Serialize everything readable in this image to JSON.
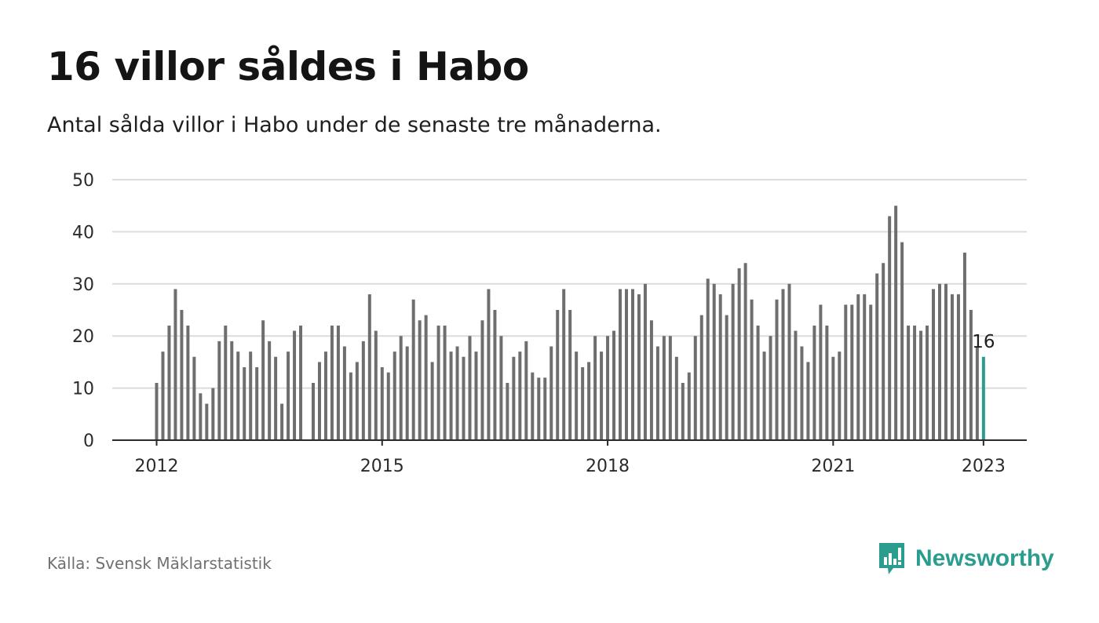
{
  "header": {
    "title": "16 villor såldes i Habo",
    "subtitle": "Antal sålda villor i Habo under de senaste tre månaderna."
  },
  "footer": {
    "source": "Källa: Svensk Mäklarstatistik",
    "brand": "Newsworthy"
  },
  "colors": {
    "bar": "#6e6e6e",
    "highlight": "#2a9d8f",
    "grid": "#dcdcdc",
    "axis": "#2b2b2b",
    "brand": "#2a9d8f"
  },
  "chart_data": {
    "type": "bar",
    "title": "16 villor såldes i Habo",
    "subtitle": "Antal sålda villor i Habo under de senaste tre månaderna.",
    "xlabel": "",
    "ylabel": "",
    "ylim": [
      0,
      50
    ],
    "yticks": [
      0,
      10,
      20,
      30,
      40,
      50
    ],
    "grid": true,
    "xticks": [
      {
        "label": "2012",
        "index": 0
      },
      {
        "label": "2015",
        "index": 36
      },
      {
        "label": "2018",
        "index": 72
      },
      {
        "label": "2021",
        "index": 108
      },
      {
        "label": "2023",
        "index": 132
      }
    ],
    "highlight_index": 132,
    "highlight_label": "16",
    "categories": [
      "2012-01",
      "2012-02",
      "2012-03",
      "2012-04",
      "2012-05",
      "2012-06",
      "2012-07",
      "2012-08",
      "2012-09",
      "2012-10",
      "2012-11",
      "2012-12",
      "2013-01",
      "2013-02",
      "2013-03",
      "2013-04",
      "2013-05",
      "2013-06",
      "2013-07",
      "2013-08",
      "2013-09",
      "2013-10",
      "2013-11",
      "2013-12",
      "2014-01",
      "2014-02",
      "2014-03",
      "2014-04",
      "2014-05",
      "2014-06",
      "2014-07",
      "2014-08",
      "2014-09",
      "2014-10",
      "2014-11",
      "2014-12",
      "2015-01",
      "2015-02",
      "2015-03",
      "2015-04",
      "2015-05",
      "2015-06",
      "2015-07",
      "2015-08",
      "2015-09",
      "2015-10",
      "2015-11",
      "2015-12",
      "2016-01",
      "2016-02",
      "2016-03",
      "2016-04",
      "2016-05",
      "2016-06",
      "2016-07",
      "2016-08",
      "2016-09",
      "2016-10",
      "2016-11",
      "2016-12",
      "2017-01",
      "2017-02",
      "2017-03",
      "2017-04",
      "2017-05",
      "2017-06",
      "2017-07",
      "2017-08",
      "2017-09",
      "2017-10",
      "2017-11",
      "2017-12",
      "2018-01",
      "2018-02",
      "2018-03",
      "2018-04",
      "2018-05",
      "2018-06",
      "2018-07",
      "2018-08",
      "2018-09",
      "2018-10",
      "2018-11",
      "2018-12",
      "2019-01",
      "2019-02",
      "2019-03",
      "2019-04",
      "2019-05",
      "2019-06",
      "2019-07",
      "2019-08",
      "2019-09",
      "2019-10",
      "2019-11",
      "2019-12",
      "2020-01",
      "2020-02",
      "2020-03",
      "2020-04",
      "2020-05",
      "2020-06",
      "2020-07",
      "2020-08",
      "2020-09",
      "2020-10",
      "2020-11",
      "2020-12",
      "2021-01",
      "2021-02",
      "2021-03",
      "2021-04",
      "2021-05",
      "2021-06",
      "2021-07",
      "2021-08",
      "2021-09",
      "2021-10",
      "2021-11",
      "2021-12",
      "2022-01",
      "2022-02",
      "2022-03",
      "2022-04",
      "2022-05",
      "2022-06",
      "2022-07",
      "2022-08",
      "2022-09",
      "2022-10",
      "2022-11",
      "2022-12",
      "2023-01"
    ],
    "values": [
      11,
      17,
      22,
      29,
      25,
      22,
      16,
      9,
      7,
      10,
      19,
      22,
      19,
      17,
      14,
      17,
      14,
      23,
      19,
      16,
      7,
      17,
      21,
      22,
      null,
      11,
      15,
      17,
      22,
      22,
      18,
      13,
      15,
      19,
      28,
      21,
      14,
      13,
      17,
      20,
      18,
      27,
      23,
      24,
      15,
      22,
      22,
      17,
      18,
      16,
      20,
      17,
      23,
      29,
      25,
      20,
      11,
      16,
      17,
      19,
      13,
      12,
      12,
      18,
      25,
      29,
      25,
      17,
      14,
      15,
      20,
      17,
      20,
      21,
      29,
      29,
      29,
      28,
      30,
      23,
      18,
      20,
      20,
      16,
      11,
      13,
      20,
      24,
      31,
      30,
      28,
      24,
      30,
      33,
      34,
      27,
      22,
      17,
      20,
      27,
      29,
      30,
      21,
      18,
      15,
      22,
      26,
      22,
      16,
      17,
      26,
      26,
      28,
      28,
      26,
      32,
      34,
      43,
      45,
      38,
      22,
      22,
      21,
      22,
      29,
      30,
      30,
      28,
      28,
      36,
      25,
      18,
      16
    ]
  }
}
